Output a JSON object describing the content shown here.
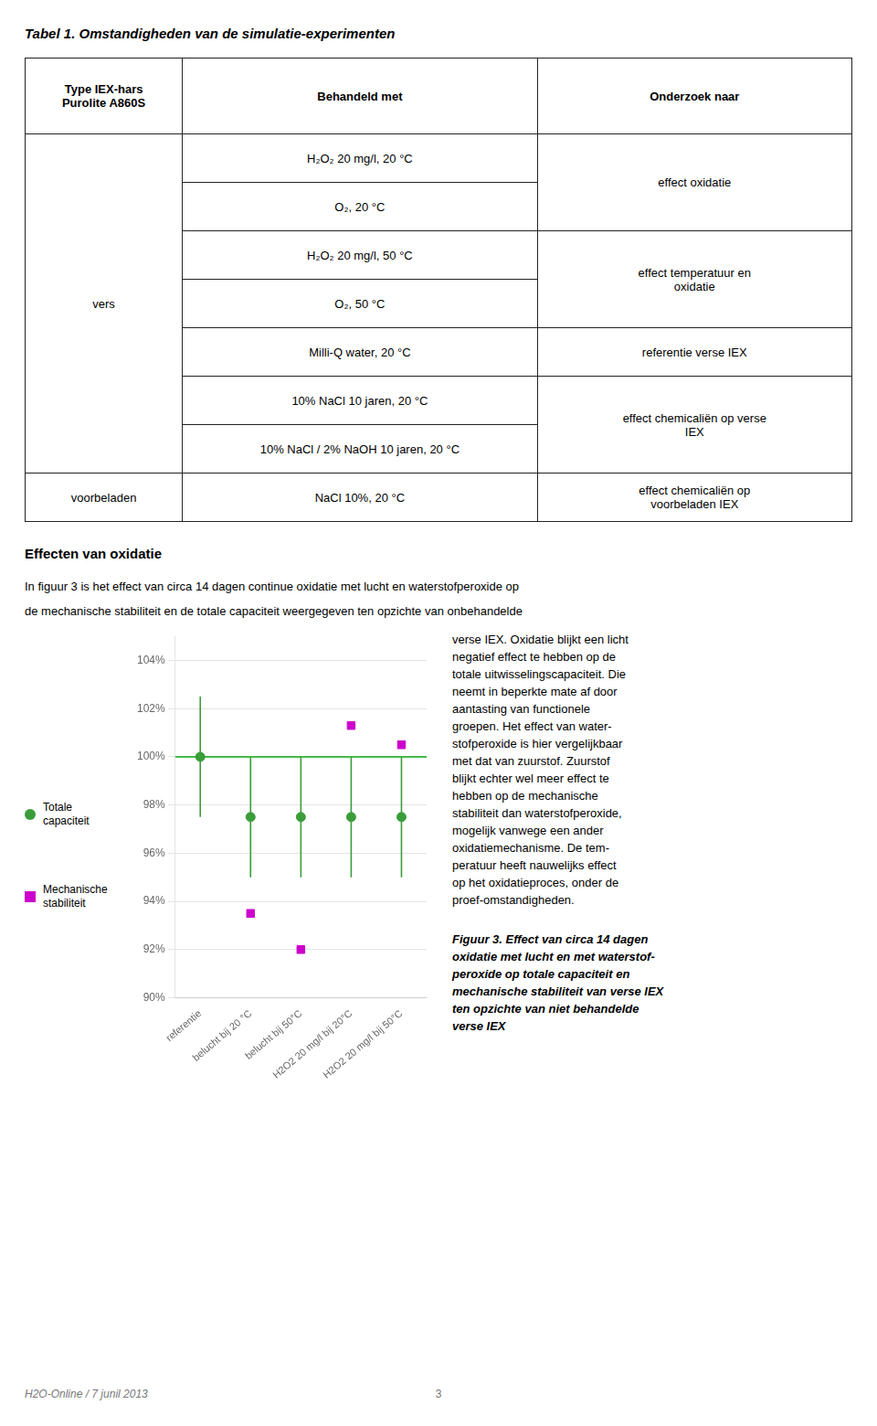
{
  "title": "Tabel 1. Omstandigheden van de simulatie-experimenten",
  "table": {
    "header": [
      "Type IEX-hars\nPurolite A860S",
      "Behandeld met",
      "Onderzoek naar"
    ],
    "rows": [
      "H₂O₂ 20 mg/l, 20 °C",
      "O₂, 20 °C",
      "H₂O₂ 20 mg/l, 50 °C",
      "O₂, 50 °C",
      "Milli-Q water, 20 °C",
      "10% NaCl 10 jaren, 20 °C",
      "10% NaCl / 2% NaOH 10 jaren, 20 °C",
      "NaCl 10%, 20 °C"
    ],
    "col1_groups": [
      {
        "text": "vers",
        "rows": [
          0,
          6
        ]
      },
      {
        "text": "voorbeladen",
        "rows": [
          7,
          7
        ]
      }
    ],
    "col3_groups": [
      {
        "text": "effect oxidatie",
        "rows": [
          0,
          1
        ]
      },
      {
        "text": "effect temperatuur en\noxidatie",
        "rows": [
          2,
          3
        ]
      },
      {
        "text": "referentie verse IEX",
        "rows": [
          4,
          4
        ]
      },
      {
        "text": "effect chemicaliën op verse\nIEX",
        "rows": [
          5,
          6
        ]
      },
      {
        "text": "effect chemicaliën op\nvoorbeladen IEX",
        "rows": [
          7,
          7
        ]
      }
    ]
  },
  "section_title": "Effecten van oxidatie",
  "body": [
    "In figuur 3 is het effect van circa 14 dagen continue oxidatie met lucht en waterstofperoxide op",
    "de mechanische stabiliteit en de totale capaciteit weergegeven ten opzichte van onbehandelde"
  ],
  "right_text": "verse IEX. Oxidatie blijkt een licht\nnegatief effect te hebben op de\ntotale uitwisselingscapaciteit. Die\nneemt in beperkte mate af door\naantasting van functionele\ngroepen. Het effect van water-\nstofperoxide is hier vergelijkbaar\nmet dat van zuurstof. Zuurstof\nblijkt echter wel meer effect te\nhebben op de mechanische\nstabiliteit dan waterstofperoxide,\nmogelijk vanwege een ander\noxidatiemechanisme. De tem-\nperatuur heeft nauwelijks effect\nop het oxidatieproces, onder de\nproef-omstandigheden.",
  "caption": "Figuur 3. Effect van circa 14 dagen\noxidatie met lucht en met waterstof-\nperoxide op totale capaciteit en\nmechanische stabiliteit van verse IEX\nten opzichte van niet behandelde\nverse IEX",
  "footer_left": "H2O-Online / 7 junil 2013",
  "footer_right": "3",
  "chart_data": {
    "type": "scatter",
    "categories": [
      "referentie",
      "belucht bij 20 °C",
      "belucht bij 50°C",
      "H2O2 20 mg/l bij 20°C",
      "H2O2 20 mg/l bij 50°C"
    ],
    "series": [
      {
        "name": "Totale\ncapaciteit",
        "color": "#3a9d3a",
        "marker": "circle",
        "values": [
          100.0,
          97.5,
          97.5,
          97.5,
          97.5
        ],
        "error_lo": [
          2.5,
          2.5,
          2.5,
          2.5,
          2.5
        ],
        "error_hi": [
          2.5,
          2.5,
          2.5,
          2.5,
          2.5
        ],
        "error_color": "#3a9d3a"
      },
      {
        "name": "Mechanische\nstabiliteit",
        "color": "#cc00cc",
        "marker": "square",
        "values": [
          null,
          93.5,
          92.0,
          101.3,
          100.5
        ]
      }
    ],
    "reference_line": {
      "y": 100.0,
      "color": "#44bb44"
    },
    "ylim": [
      90,
      105
    ],
    "yticks": [
      {
        "value": 90,
        "label": "90%"
      },
      {
        "value": 92,
        "label": "92%"
      },
      {
        "value": 94,
        "label": "94%"
      },
      {
        "value": 96,
        "label": "96%"
      },
      {
        "value": 98,
        "label": "98%"
      },
      {
        "value": 100,
        "label": "100%"
      },
      {
        "value": 102,
        "label": "102%"
      },
      {
        "value": 104,
        "label": "104%"
      }
    ],
    "grid": "y",
    "legend": "left"
  }
}
